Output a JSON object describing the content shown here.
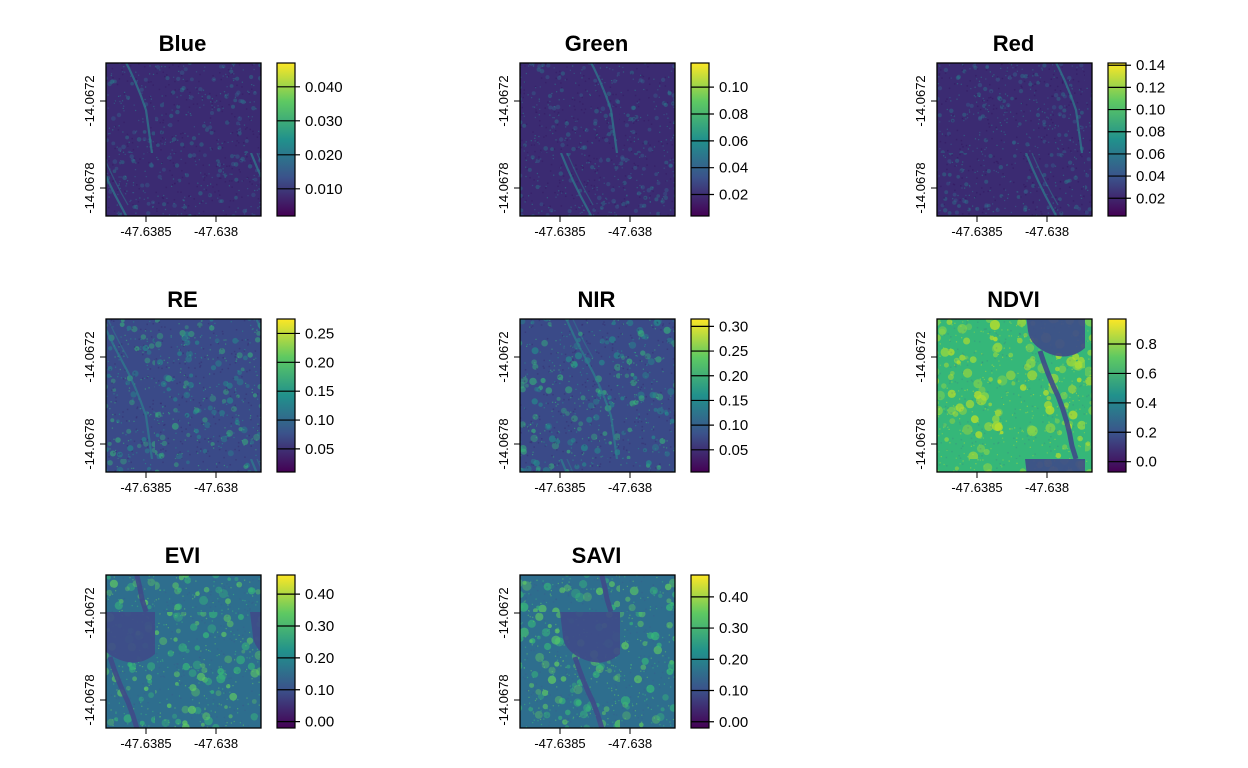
{
  "chart_data": [
    {
      "type": "heatmap",
      "title": "Blue",
      "variable": "Blue",
      "palette": "viridis",
      "legend_ticks": [
        "0.010",
        "0.020",
        "0.030",
        "0.040"
      ],
      "legend_values": [
        0.01,
        0.02,
        0.03,
        0.04
      ],
      "value_range": [
        0.002,
        0.047
      ],
      "x_ticks": [
        "-47.6385",
        "-47.638"
      ],
      "y_ticks": [
        "-14.0672",
        "-14.0678"
      ],
      "grid": false,
      "legend_placement": "right"
    },
    {
      "type": "heatmap",
      "title": "Green",
      "variable": "Green",
      "palette": "viridis",
      "legend_ticks": [
        "0.02",
        "0.04",
        "0.06",
        "0.08",
        "0.10"
      ],
      "legend_values": [
        0.02,
        0.04,
        0.06,
        0.08,
        0.1
      ],
      "value_range": [
        0.004,
        0.118
      ],
      "x_ticks": [
        "-47.6385",
        "-47.638"
      ],
      "y_ticks": [
        "-14.0672",
        "-14.0678"
      ],
      "grid": false,
      "legend_placement": "right"
    },
    {
      "type": "heatmap",
      "title": "Red",
      "variable": "Red",
      "palette": "viridis",
      "legend_ticks": [
        "0.02",
        "0.04",
        "0.06",
        "0.08",
        "0.10",
        "0.12",
        "0.14"
      ],
      "legend_values": [
        0.02,
        0.04,
        0.06,
        0.08,
        0.1,
        0.12,
        0.14
      ],
      "value_range": [
        0.004,
        0.142
      ],
      "x_ticks": [
        "-47.6385",
        "-47.638"
      ],
      "y_ticks": [
        "-14.0672",
        "-14.0678"
      ],
      "grid": false,
      "legend_placement": "right"
    },
    {
      "type": "heatmap",
      "title": "RE",
      "variable": "RE",
      "palette": "viridis",
      "legend_ticks": [
        "0.05",
        "0.10",
        "0.15",
        "0.20",
        "0.25"
      ],
      "legend_values": [
        0.05,
        0.1,
        0.15,
        0.2,
        0.25
      ],
      "value_range": [
        0.01,
        0.275
      ],
      "x_ticks": [
        "-47.6385",
        "-47.638"
      ],
      "y_ticks": [
        "-14.0672",
        "-14.0678"
      ],
      "grid": false,
      "legend_placement": "right"
    },
    {
      "type": "heatmap",
      "title": "NIR",
      "variable": "NIR",
      "palette": "viridis",
      "legend_ticks": [
        "0.05",
        "0.10",
        "0.15",
        "0.20",
        "0.25",
        "0.30"
      ],
      "legend_values": [
        0.05,
        0.1,
        0.15,
        0.2,
        0.25,
        0.3
      ],
      "value_range": [
        0.005,
        0.315
      ],
      "x_ticks": [
        "-47.6385",
        "-47.638"
      ],
      "y_ticks": [
        "-14.0672",
        "-14.0678"
      ],
      "grid": false,
      "legend_placement": "right"
    },
    {
      "type": "heatmap",
      "title": "NDVI",
      "variable": "NDVI",
      "palette": "viridis",
      "legend_ticks": [
        "0.0",
        "0.2",
        "0.4",
        "0.6",
        "0.8"
      ],
      "legend_values": [
        0.0,
        0.2,
        0.4,
        0.6,
        0.8
      ],
      "value_range": [
        -0.07,
        0.97
      ],
      "x_ticks": [
        "-47.6385",
        "-47.638"
      ],
      "y_ticks": [
        "-14.0672",
        "-14.0678"
      ],
      "grid": false,
      "legend_placement": "right"
    },
    {
      "type": "heatmap",
      "title": "EVI",
      "variable": "EVI",
      "palette": "viridis",
      "legend_ticks": [
        "0.00",
        "0.10",
        "0.20",
        "0.30",
        "0.40"
      ],
      "legend_values": [
        0.0,
        0.1,
        0.2,
        0.3,
        0.4
      ],
      "value_range": [
        -0.02,
        0.46
      ],
      "x_ticks": [
        "-47.6385",
        "-47.638"
      ],
      "y_ticks": [
        "-14.0672",
        "-14.0678"
      ],
      "grid": false,
      "legend_placement": "right"
    },
    {
      "type": "heatmap",
      "title": "SAVI",
      "variable": "SAVI",
      "palette": "viridis",
      "legend_ticks": [
        "0.00",
        "0.10",
        "0.20",
        "0.30",
        "0.40"
      ],
      "legend_values": [
        0.0,
        0.1,
        0.2,
        0.3,
        0.4
      ],
      "value_range": [
        -0.02,
        0.47
      ],
      "x_ticks": [
        "-47.6385",
        "-47.638"
      ],
      "y_ticks": [
        "-14.0672",
        "-14.0678"
      ],
      "grid": false,
      "legend_placement": "right"
    }
  ]
}
